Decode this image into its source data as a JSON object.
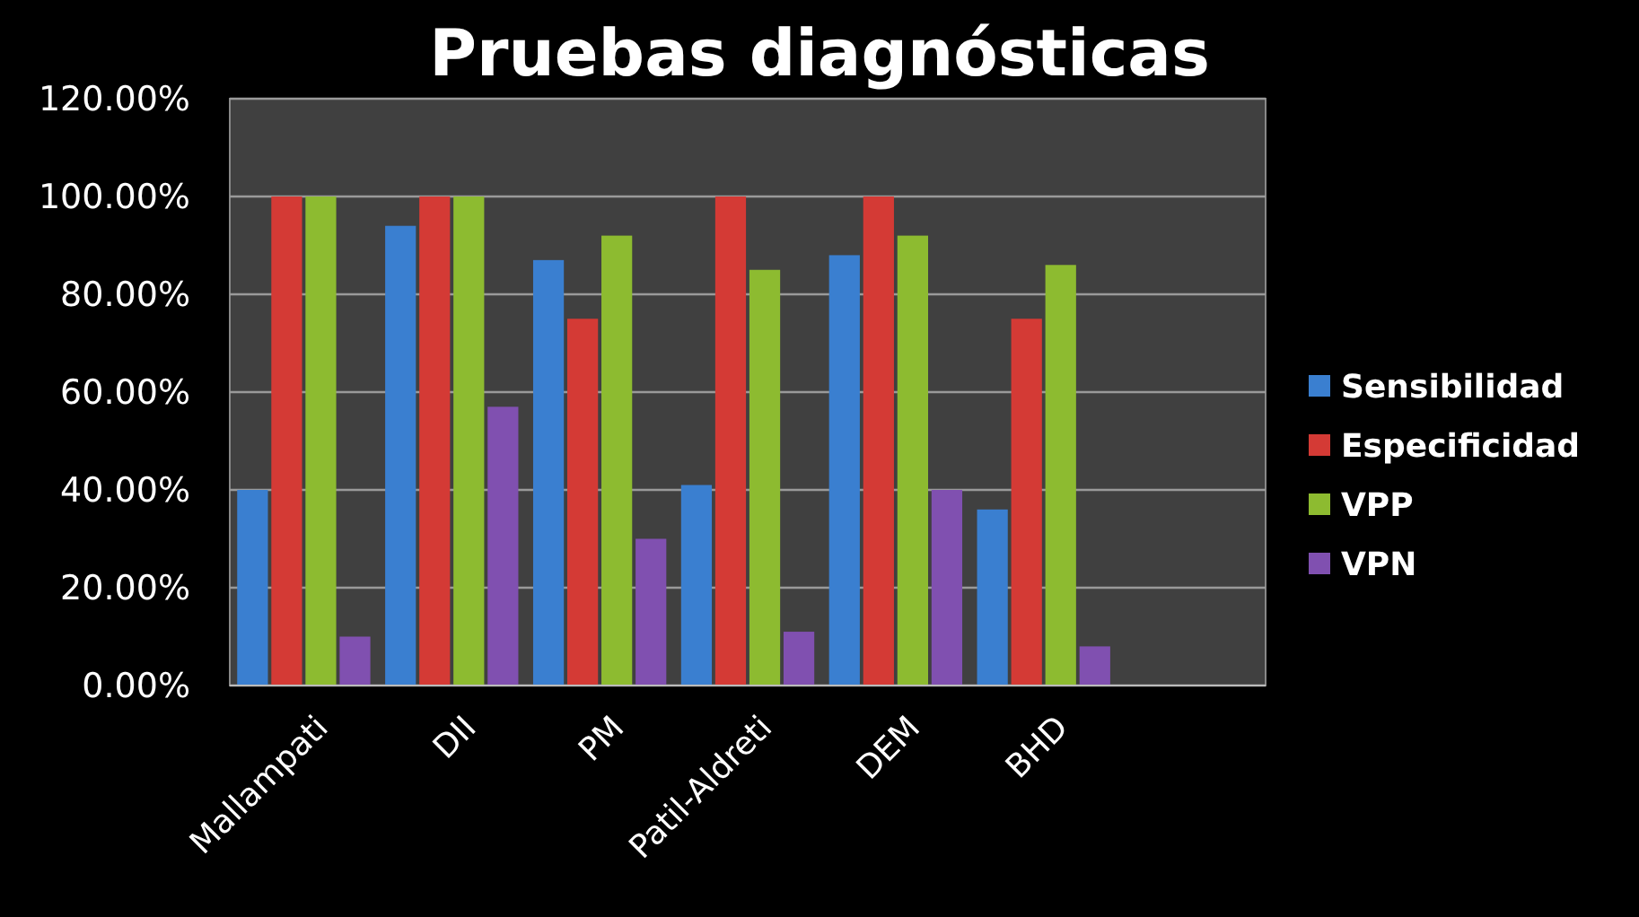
{
  "chart_data": {
    "type": "bar",
    "title": "Pruebas diagnósticas",
    "categories": [
      "Mallampati",
      "DII",
      "PM",
      "Patil-Aldreti",
      "DEM",
      "BHD",
      null
    ],
    "series": [
      {
        "name": "Sensibilidad",
        "color": "#3a7fd0",
        "values": [
          40,
          94,
          87,
          41,
          88,
          36,
          null
        ]
      },
      {
        "name": "Especificidad",
        "color": "#d43a35",
        "values": [
          100,
          100,
          75,
          100,
          100,
          75,
          null
        ]
      },
      {
        "name": "VPP",
        "color": "#8dbb30",
        "values": [
          100,
          100,
          92,
          85,
          92,
          86,
          null
        ]
      },
      {
        "name": "VPN",
        "color": "#8050b0",
        "values": [
          10,
          57,
          30,
          11,
          40,
          8,
          null
        ]
      }
    ],
    "ylim": [
      0,
      120
    ],
    "yticks": [
      {
        "value": 0,
        "label": "0.00%"
      },
      {
        "value": 20,
        "label": "20.00%"
      },
      {
        "value": 40,
        "label": "40.00%"
      },
      {
        "value": 60,
        "label": "60.00%"
      },
      {
        "value": 80,
        "label": "80.00%"
      },
      {
        "value": 100,
        "label": "100.00%"
      },
      {
        "value": 120,
        "label": "120.00%"
      }
    ],
    "grid": "y",
    "legend": "right"
  }
}
